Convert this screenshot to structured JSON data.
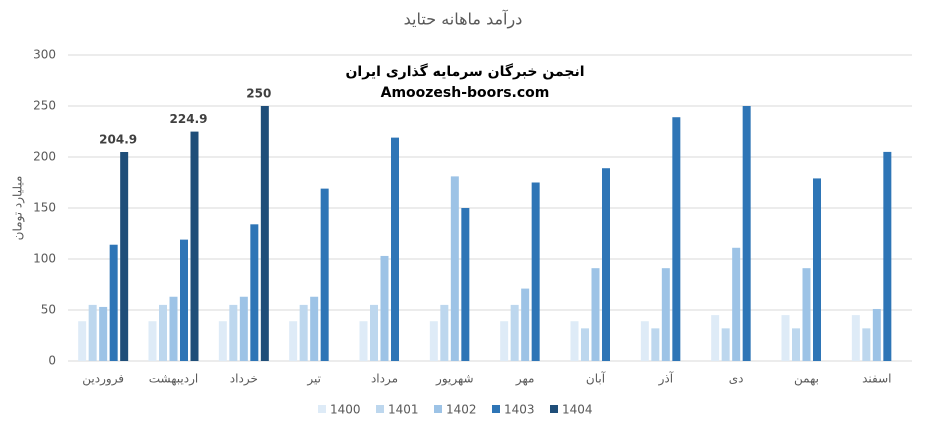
{
  "chart_data": {
    "type": "bar",
    "title": "درآمد ماهانه حتاید",
    "y_label": "میلیارد تومان",
    "annotations": [
      "انجمن خبرگان سرمایه گذاری ایران",
      "Amoozesh-boors.com"
    ],
    "categories": [
      "فروردین",
      "اردیبهشت",
      "خرداد",
      "تیر",
      "مرداد",
      "شهریور",
      "مهر",
      "آبان",
      "آذر",
      "دی",
      "بهمن",
      "اسفند"
    ],
    "series": [
      {
        "name": "1400",
        "color": "#deebf7",
        "values": [
          39,
          39,
          39,
          39,
          39,
          39,
          39,
          39,
          39,
          45,
          45,
          45
        ]
      },
      {
        "name": "1401",
        "color": "#bdd7ee",
        "values": [
          55,
          55,
          55,
          55,
          55,
          55,
          55,
          32,
          32,
          32,
          32,
          32
        ]
      },
      {
        "name": "1402",
        "color": "#9dc3e6",
        "values": [
          53,
          63,
          63,
          63,
          103,
          181,
          71,
          91,
          91,
          111,
          91,
          51
        ]
      },
      {
        "name": "1403",
        "color": "#2e75b6",
        "values": [
          114,
          119,
          134,
          169,
          219,
          150,
          175,
          189,
          239,
          250,
          179,
          205
        ]
      },
      {
        "name": "1404",
        "color": "#1f4e79",
        "values": [
          204.9,
          224.9,
          250,
          null,
          null,
          null,
          null,
          null,
          null,
          null,
          null,
          null
        ]
      }
    ],
    "ylim": [
      0,
      300
    ],
    "yticks": [
      0,
      50,
      100,
      150,
      200,
      250,
      300
    ],
    "grid": true,
    "legend": "bottom"
  }
}
